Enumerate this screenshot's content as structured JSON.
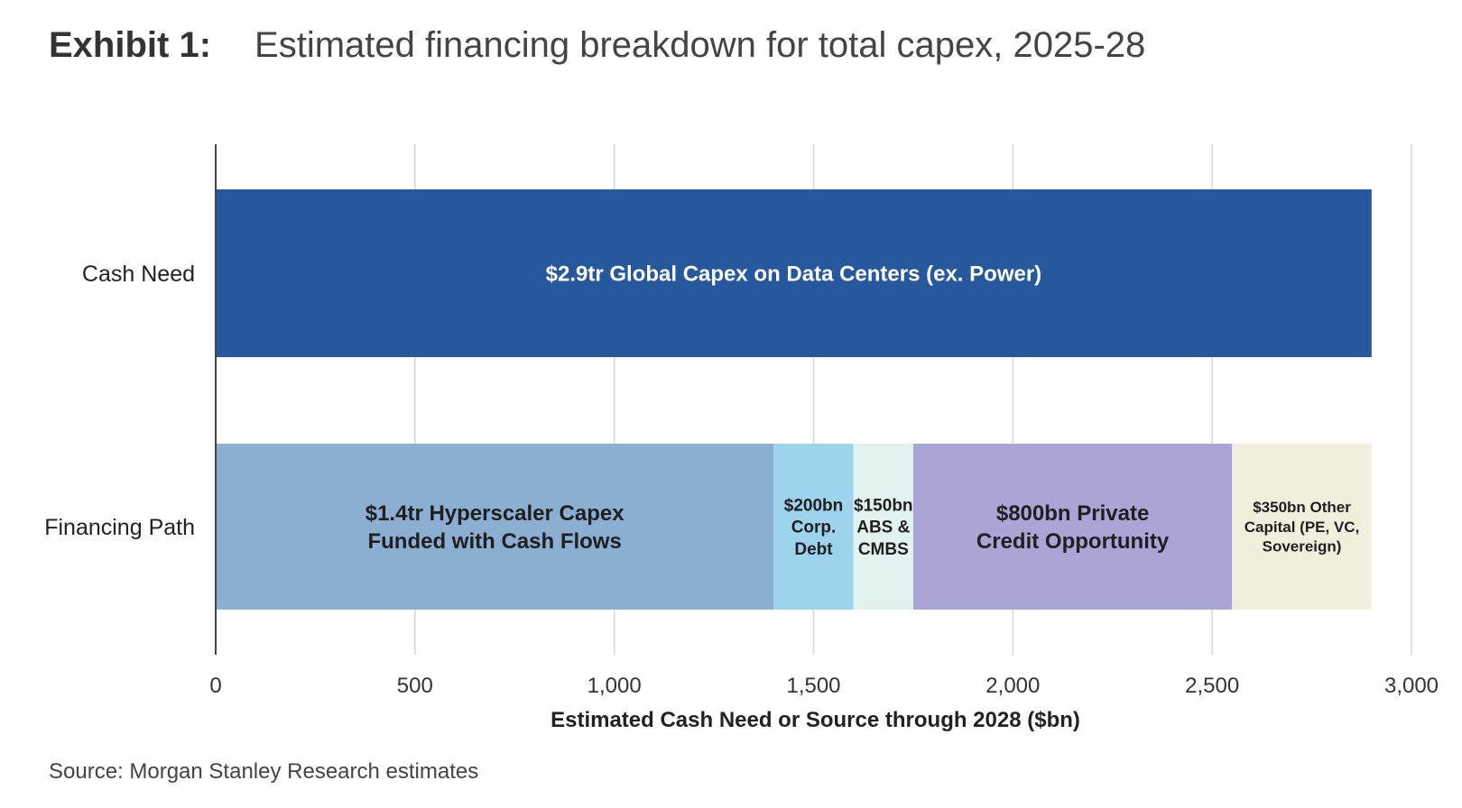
{
  "header": {
    "exhibit": "Exhibit 1:",
    "title": "Estimated financing breakdown for total capex, 2025-28"
  },
  "source": "Source: Morgan Stanley Research estimates",
  "chart_data": {
    "type": "bar",
    "orientation": "horizontal",
    "stacked": true,
    "xlabel": "Estimated Cash Need or Source through 2028 ($bn)",
    "xlim": [
      0,
      3000
    ],
    "xticks": [
      0,
      500,
      1000,
      1500,
      2000,
      2500,
      3000
    ],
    "xtick_labels": [
      "0",
      "500",
      "1,000",
      "1,500",
      "2,000",
      "2,500",
      "3,000"
    ],
    "grid": true,
    "categories": [
      "Cash Need",
      "Financing Path"
    ],
    "bars": [
      {
        "category": "Cash Need",
        "segments": [
          {
            "value": 2900,
            "label": [
              "$2.9tr Global Capex on Data Centers (ex. Power)"
            ],
            "color": "#26589b",
            "text_color": "#ffffff"
          }
        ]
      },
      {
        "category": "Financing Path",
        "segments": [
          {
            "value": 1400,
            "label": [
              "$1.4tr Hyperscaler Capex",
              "Funded with Cash Flows"
            ],
            "color": "#8caed2",
            "text_color": "#1f1f1f"
          },
          {
            "value": 200,
            "label": [
              "$200bn",
              "Corp.",
              "Debt"
            ],
            "color": "#9ed3ee",
            "text_color": "#1f1f1f"
          },
          {
            "value": 150,
            "label": [
              "$150bn",
              "ABS &",
              "CMBS"
            ],
            "color": "#e2f3ef",
            "text_color": "#1f1f1f"
          },
          {
            "value": 800,
            "label": [
              "$800bn Private",
              "Credit Opportunity"
            ],
            "color": "#a9a5d7",
            "text_color": "#1f1f1f"
          },
          {
            "value": 350,
            "label": [
              "$350bn Other",
              "Capital (PE, VC,",
              "Sovereign)"
            ],
            "color": "#f2eedd",
            "text_color": "#1f1f1f"
          }
        ]
      }
    ]
  }
}
